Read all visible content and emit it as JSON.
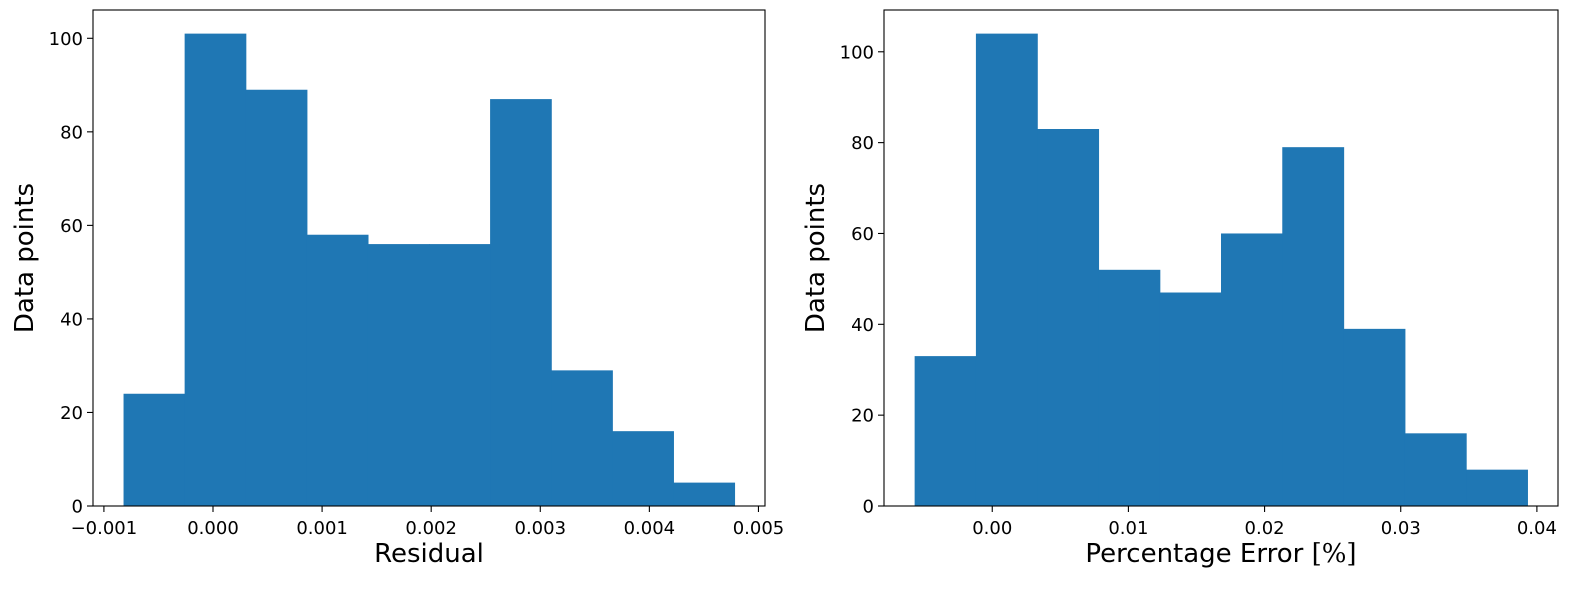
{
  "chart_data": [
    {
      "type": "bar",
      "subtype": "histogram",
      "bin_edges": [
        -0.00082,
        -0.00026,
        0.0003,
        0.00086,
        0.00142,
        0.00198,
        0.00254,
        0.0031,
        0.00366,
        0.00422,
        0.00478
      ],
      "values": [
        24,
        101,
        89,
        58,
        56,
        56,
        87,
        29,
        16,
        5
      ],
      "color": "#1f77b4",
      "xlabel": "Residual",
      "ylabel": "Data points",
      "xlim": [
        -0.0011,
        0.00506
      ],
      "ylim": [
        0,
        106.05
      ],
      "xticks": [
        -0.001,
        0.0,
        0.001,
        0.002,
        0.003,
        0.004,
        0.005
      ],
      "xtick_labels": [
        "−0.001",
        "0.000",
        "0.001",
        "0.002",
        "0.003",
        "0.004",
        "0.005"
      ],
      "yticks": [
        0,
        20,
        40,
        60,
        80,
        100
      ],
      "ytick_labels": [
        "0",
        "20",
        "40",
        "60",
        "80",
        "100"
      ],
      "grid": false
    },
    {
      "type": "bar",
      "subtype": "histogram",
      "bin_edges": [
        -0.0057,
        -0.0012,
        0.0033,
        0.0078,
        0.0123,
        0.0168,
        0.0213,
        0.0258,
        0.0303,
        0.0348,
        0.0393
      ],
      "values": [
        33,
        104,
        83,
        52,
        47,
        60,
        79,
        39,
        16,
        8
      ],
      "color": "#1f77b4",
      "xlabel_text": "Percentage Error ",
      "xlabel_math": "[%]",
      "ylabel": "Data points",
      "xlim": [
        -0.00795,
        0.04155
      ],
      "ylim": [
        0,
        109.2
      ],
      "xticks": [
        0.0,
        0.01,
        0.02,
        0.03,
        0.04
      ],
      "xtick_labels": [
        "0.00",
        "0.01",
        "0.02",
        "0.03",
        "0.04"
      ],
      "yticks": [
        0,
        20,
        40,
        60,
        80,
        100
      ],
      "ytick_labels": [
        "0",
        "20",
        "40",
        "60",
        "80",
        "100"
      ],
      "grid": false
    }
  ]
}
